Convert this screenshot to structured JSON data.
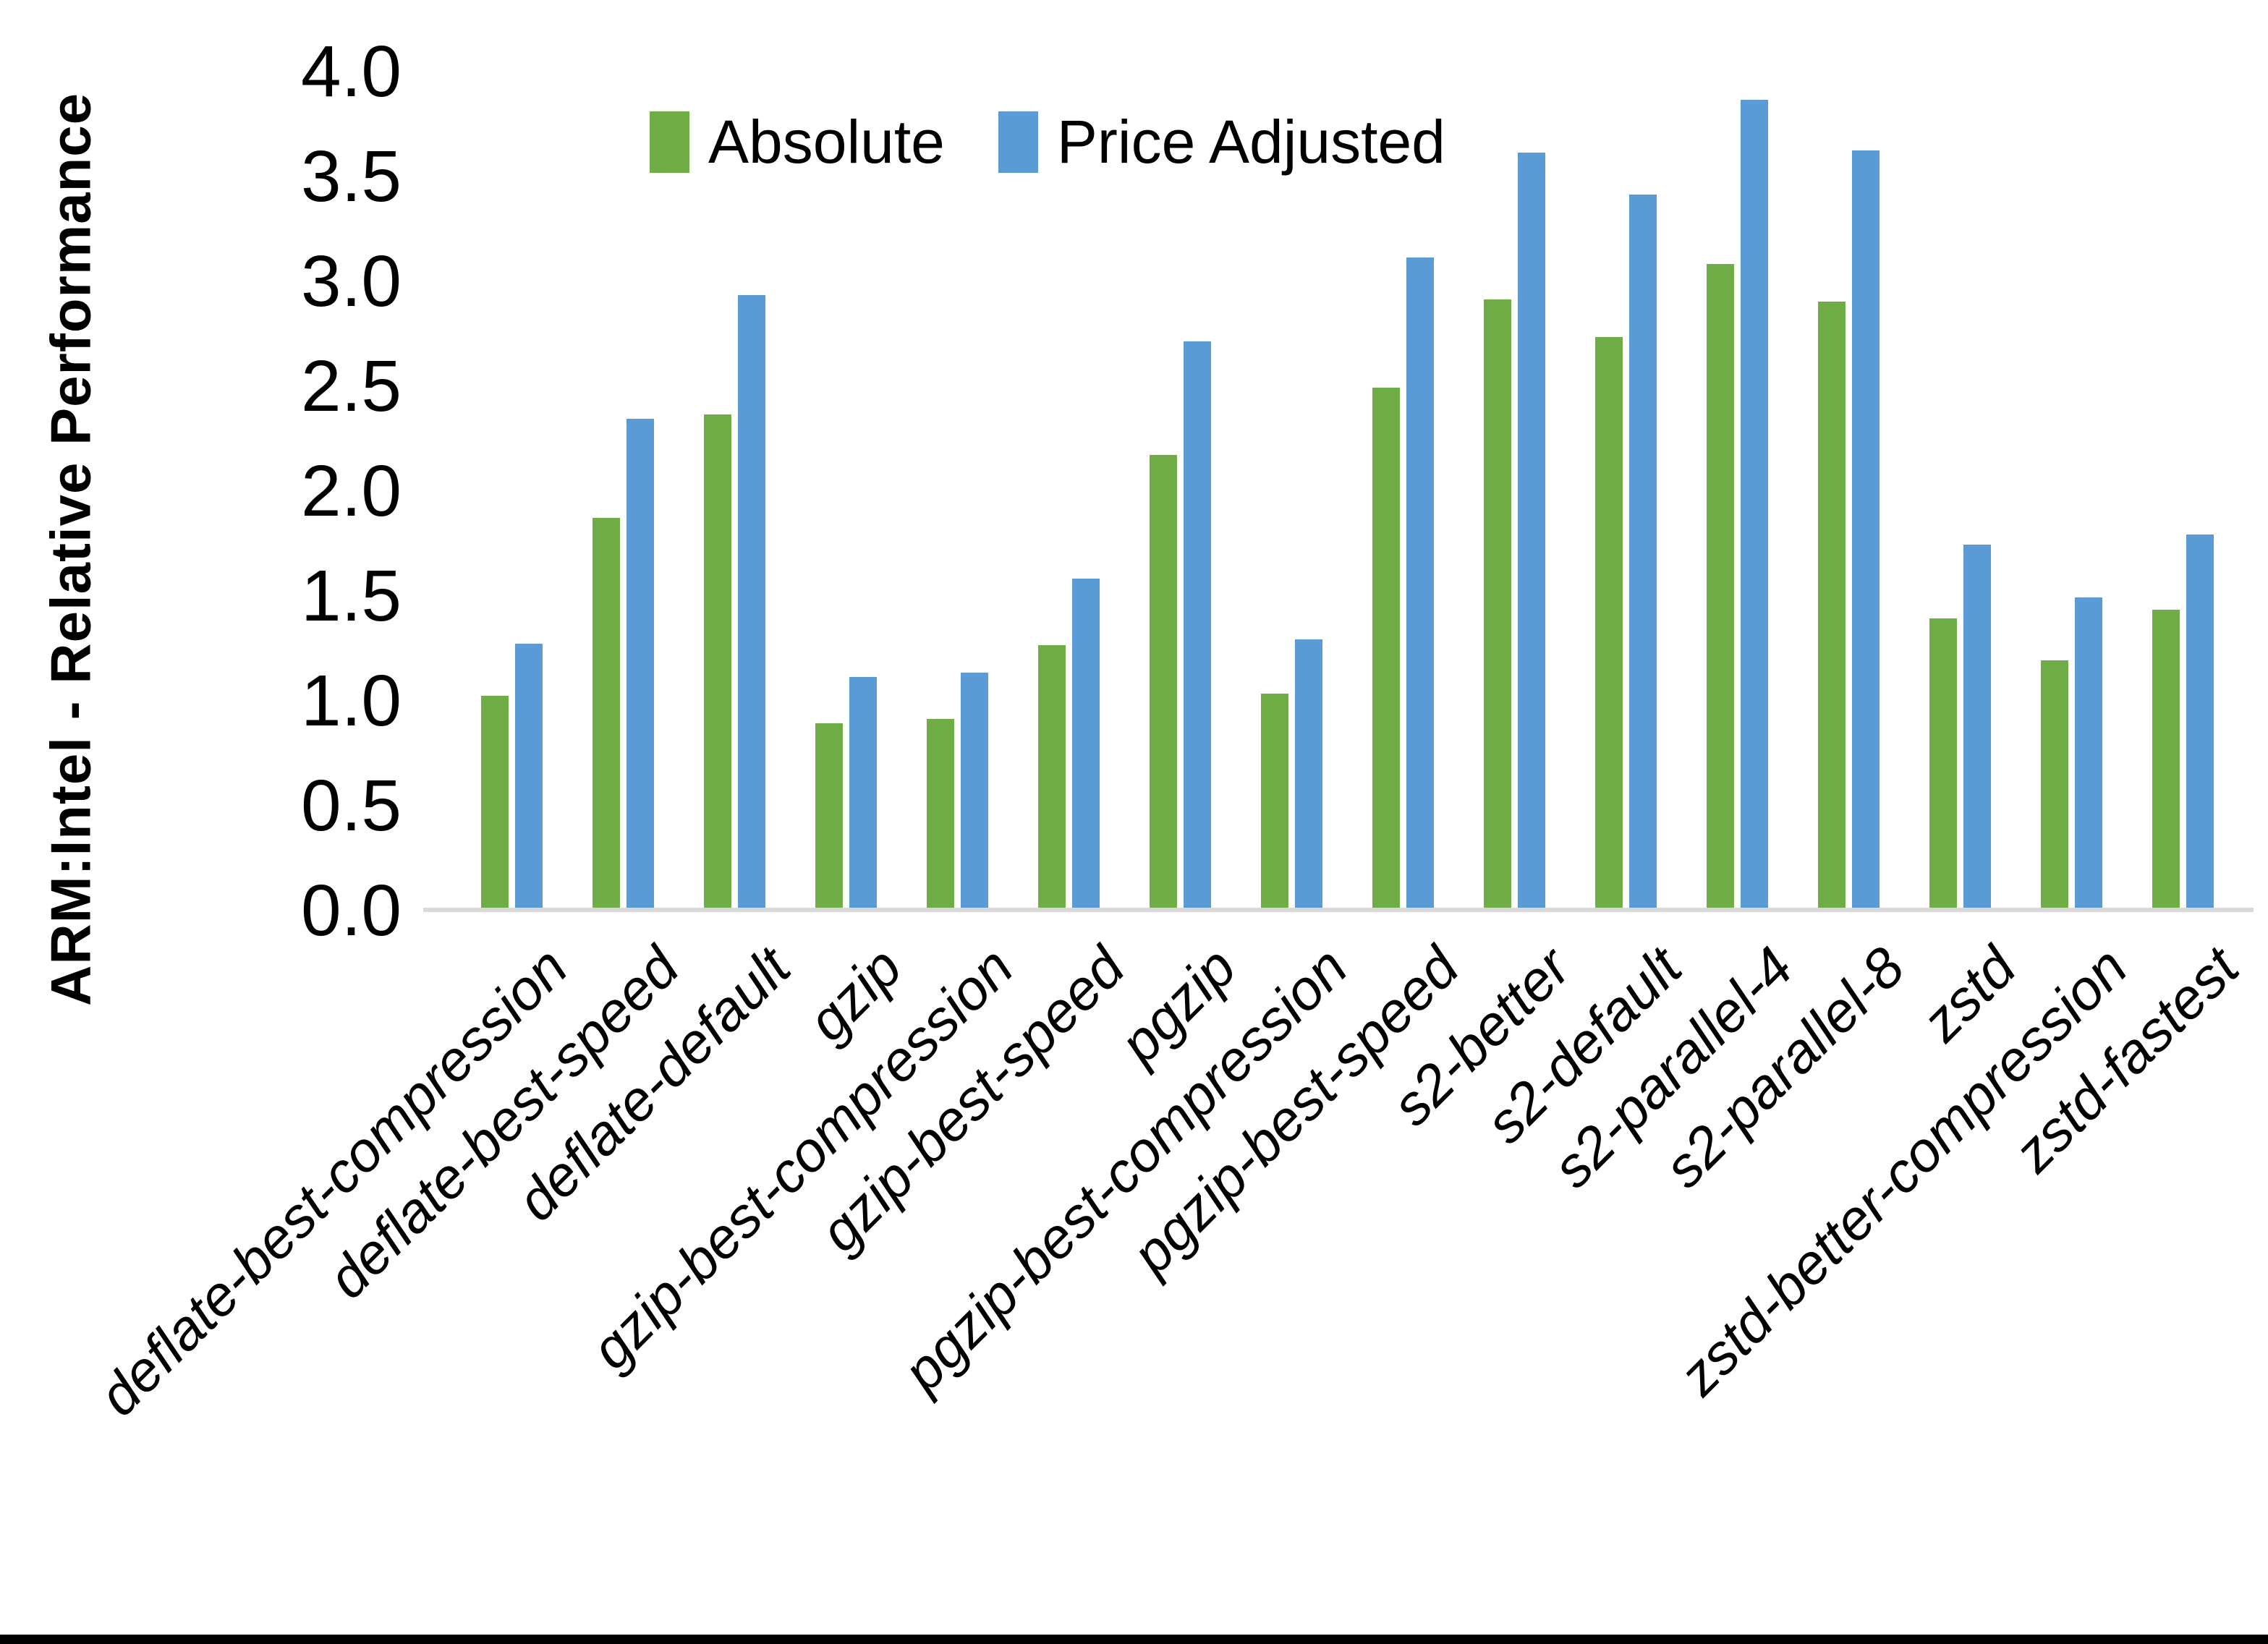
{
  "chart_data": {
    "type": "bar",
    "title": "",
    "ylabel": "ARM:Intel - Relative Performance",
    "xlabel": "",
    "categories": [
      "deflate-best-compression",
      "deflate-best-speed",
      "deflate-default",
      "gzip",
      "gzip-best-compression",
      "gzip-best-speed",
      "pgzip",
      "pgzip-best-compression",
      "pgzip-best-speed",
      "s2-better",
      "s2-default",
      "s2-parallel-4",
      "s2-parallel-8",
      "zstd",
      "zstd-better-compression",
      "zstd-fastest"
    ],
    "series": [
      {
        "name": "Absolute",
        "color": "#70AD47",
        "values": [
          1.01,
          1.86,
          2.35,
          0.88,
          0.9,
          1.25,
          2.16,
          1.02,
          2.48,
          2.9,
          2.72,
          3.07,
          2.89,
          1.38,
          1.18,
          1.42
        ]
      },
      {
        "name": "Price Adjusted",
        "color": "#5B9BD5",
        "values": [
          1.26,
          2.33,
          2.92,
          1.1,
          1.12,
          1.57,
          2.7,
          1.28,
          3.1,
          3.6,
          3.4,
          3.85,
          3.61,
          1.73,
          1.48,
          1.78
        ]
      }
    ],
    "ylim": [
      0.0,
      4.0
    ],
    "ytick_labels": [
      "0.0",
      "0.5",
      "1.0",
      "1.5",
      "2.0",
      "2.5",
      "3.0",
      "3.5",
      "4.0"
    ],
    "grid": false,
    "legend_position": "top-center",
    "axis_line_color": "#D9D9D9",
    "page_border_bottom_color": "#000000"
  }
}
